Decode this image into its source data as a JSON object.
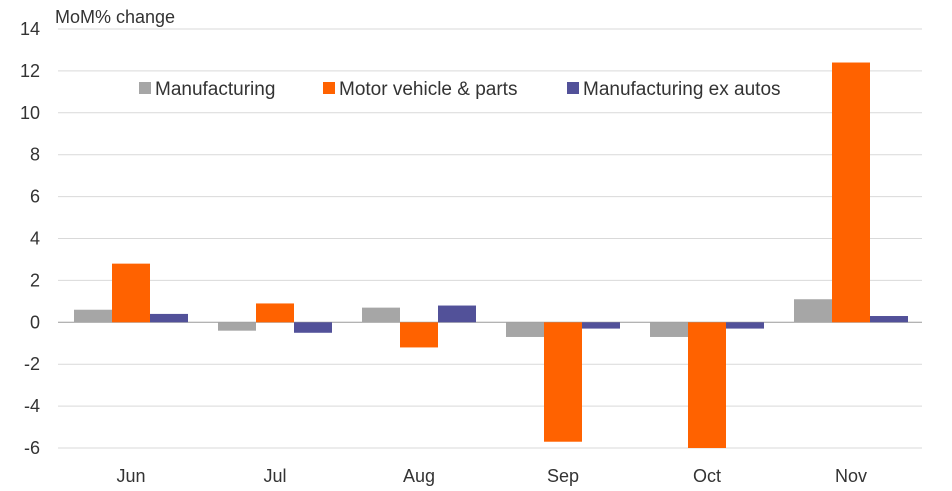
{
  "chart_data": {
    "type": "bar",
    "title": "",
    "xlabel": "",
    "ylabel": "MoM% change",
    "ylim": [
      -6,
      14
    ],
    "yticks": [
      -6,
      -4,
      -2,
      0,
      2,
      4,
      6,
      8,
      10,
      12,
      14
    ],
    "ytick_labels": [
      "-6",
      "-4",
      "-2",
      "0",
      "2",
      "4",
      "6",
      "8",
      "10",
      "12",
      "14"
    ],
    "grid": true,
    "legend_position": "top-left",
    "categories": [
      "Jun",
      "Jul",
      "Aug",
      "Sep",
      "Oct",
      "Nov"
    ],
    "series": [
      {
        "name": "Manufacturing",
        "color": "#a6a6a6",
        "values": [
          0.6,
          -0.4,
          0.7,
          -0.7,
          -0.7,
          1.1
        ]
      },
      {
        "name": "Motor vehicle & parts",
        "color": "#ff6200",
        "values": [
          2.8,
          0.9,
          -1.2,
          -5.7,
          -6.0,
          12.4
        ]
      },
      {
        "name": "Manufacturing ex autos",
        "color": "#525199",
        "values": [
          0.4,
          -0.5,
          0.8,
          -0.3,
          -0.3,
          0.3
        ]
      }
    ]
  }
}
